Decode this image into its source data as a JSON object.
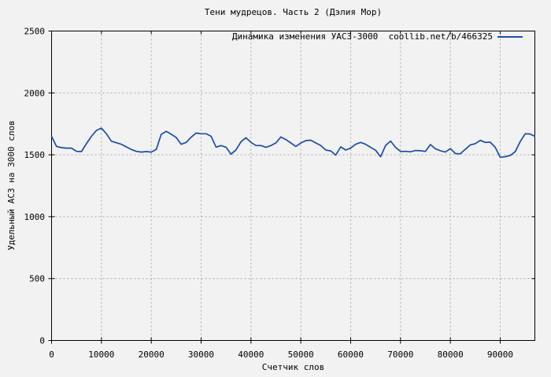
{
  "title": "Тени мудрецов. Часть 2 (Дэлия Мор)",
  "legend": {
    "label": "Динамика изменения УАСЗ-3000  coollib.net/b/466325"
  },
  "axes": {
    "x_label": "Счетчик слов",
    "y_label": "Удельный АСЗ на 3000 слов"
  },
  "colors": {
    "background": "#f2f2f2",
    "frame": "#000000",
    "grid": "#a8a8a8",
    "line": "#1b4da5"
  },
  "chart_data": {
    "type": "line",
    "title": "Тени мудрецов. Часть 2 (Дэлия Мор)",
    "xlabel": "Счетчик слов",
    "ylabel": "Удельный АСЗ на 3000 слов",
    "xlim": [
      0,
      96950
    ],
    "ylim": [
      0,
      2500
    ],
    "xticks": [
      0,
      10000,
      20000,
      30000,
      40000,
      50000,
      60000,
      70000,
      80000,
      90000
    ],
    "yticks": [
      0,
      500,
      1000,
      1500,
      2000,
      2500
    ],
    "grid": true,
    "legend_position": "top-right",
    "series": [
      {
        "name": "Динамика изменения УАСЗ-3000  coollib.net/b/466325",
        "color": "#1b4da5",
        "x": [
          0,
          1000,
          2000,
          3000,
          4000,
          5000,
          6000,
          7000,
          8000,
          9000,
          10000,
          11000,
          12000,
          13000,
          14000,
          15000,
          16000,
          17000,
          18000,
          19000,
          20000,
          21000,
          22000,
          23000,
          24000,
          25000,
          26000,
          27000,
          28000,
          29000,
          30000,
          31000,
          32000,
          33000,
          34000,
          35000,
          36000,
          37000,
          38000,
          39000,
          40000,
          41000,
          42000,
          43000,
          44000,
          45000,
          46000,
          47000,
          48000,
          49000,
          50000,
          51000,
          52000,
          53000,
          54000,
          55000,
          56000,
          57000,
          58000,
          59000,
          60000,
          61000,
          62000,
          63000,
          64000,
          65000,
          66000,
          67000,
          68000,
          69000,
          70000,
          71000,
          72000,
          73000,
          74000,
          75000,
          76000,
          77000,
          78000,
          79000,
          80000,
          81000,
          82000,
          83000,
          84000,
          85000,
          86000,
          87000,
          88000,
          89000,
          90000,
          91000,
          92000,
          93000,
          94000,
          95000,
          96000,
          96900
        ],
        "y": [
          1649,
          1568,
          1558,
          1554,
          1554,
          1528,
          1526,
          1590,
          1650,
          1697,
          1716,
          1670,
          1610,
          1598,
          1585,
          1564,
          1543,
          1528,
          1522,
          1526,
          1522,
          1543,
          1665,
          1690,
          1666,
          1640,
          1585,
          1600,
          1642,
          1676,
          1670,
          1670,
          1650,
          1562,
          1575,
          1560,
          1505,
          1540,
          1606,
          1638,
          1600,
          1575,
          1575,
          1560,
          1575,
          1596,
          1644,
          1623,
          1596,
          1568,
          1595,
          1615,
          1618,
          1596,
          1575,
          1539,
          1532,
          1497,
          1564,
          1539,
          1554,
          1585,
          1600,
          1585,
          1560,
          1537,
          1484,
          1575,
          1611,
          1560,
          1527,
          1528,
          1524,
          1535,
          1533,
          1527,
          1583,
          1548,
          1533,
          1522,
          1550,
          1510,
          1508,
          1545,
          1580,
          1590,
          1617,
          1600,
          1602,
          1560,
          1480,
          1485,
          1495,
          1525,
          1606,
          1670,
          1668,
          1650
        ]
      }
    ]
  }
}
